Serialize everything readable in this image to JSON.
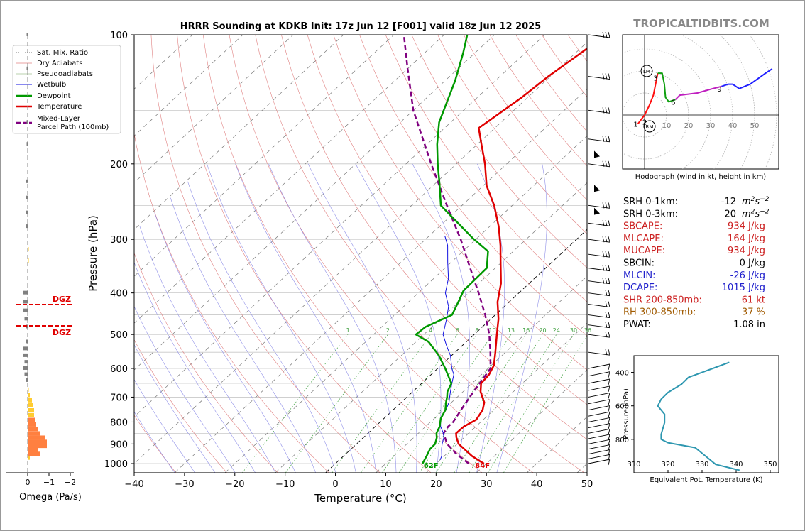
{
  "title": "HRRR Sounding at KDKB Init: 17z Jun 12 [F001] valid 18z Jun 12 2025",
  "site_label": "TROPICALTIDBITS.COM",
  "colors": {
    "temperature": "#e00000",
    "dewpoint": "#009900",
    "wetbulb": "#1010e0",
    "parcel": "#800080",
    "dry_adiabat": "#e08080",
    "moist_adiabat": "#9090e8",
    "mixing_ratio": "#40a040",
    "isotherm_dashed": "#777777",
    "isotherm_zero": "#000000",
    "dgz": "#e00000",
    "theta_e": "#2e97b0",
    "hodo_red": "#ff1010",
    "hodo_green": "#10a010",
    "hodo_purple": "#c020c0",
    "hodo_blue": "#2020ff",
    "omega_bars": "#ff8040",
    "omega_small": "#ffcc30",
    "omega_neg": "#808080",
    "label_red": "#cc2020",
    "label_blue": "#2020cc",
    "label_brown": "#a05a00"
  },
  "skewt": {
    "xlabel": "Temperature (°C)",
    "ylabel": "Pressure (hPa)",
    "xlim": [
      -40,
      50
    ],
    "plim": [
      1050,
      100
    ],
    "x_ticks": [
      "−40",
      "−30",
      "−20",
      "−10",
      "0",
      "10",
      "20",
      "30",
      "40",
      "50"
    ],
    "p_ticks": [
      "100",
      "200",
      "300",
      "400",
      "500",
      "600",
      "700",
      "800",
      "900",
      "1000"
    ],
    "mixing_ratio_labels": [
      "1",
      "2",
      "4",
      "6",
      "8",
      "10",
      "13",
      "16",
      "20",
      "24",
      "30",
      "36"
    ],
    "surface_temp_label": "84F",
    "surface_dewpoint_label": "62F"
  },
  "legend": {
    "items": [
      {
        "label": "Sat. Mix. Ratio"
      },
      {
        "label": "Dry Adiabats"
      },
      {
        "label": "Pseudoadiabats"
      },
      {
        "label": "Wetbulb"
      },
      {
        "label": "Dewpoint"
      },
      {
        "label": "Temperature"
      },
      {
        "label": "Mixed-Layer"
      },
      {
        "label": "Parcel Path (100mb)"
      }
    ]
  },
  "omega": {
    "xlabel": "Omega (Pa/s)",
    "x_ticks": [
      "0",
      "−1",
      "−2"
    ],
    "dgz_label": "DGZ"
  },
  "hodograph": {
    "caption": "Hodograph (wind in kt, height in km)",
    "ring_labels": [
      "10",
      "20",
      "30",
      "40",
      "50"
    ],
    "height_labels": [
      "1",
      "2",
      "3",
      "6",
      "9"
    ],
    "lm_label": "LM",
    "rm_label": "RM"
  },
  "indices": [
    {
      "name": "SRH 0-1km:",
      "value": "-12",
      "unit": "m2s-2",
      "color": "black"
    },
    {
      "name": "SRH 0-3km:",
      "value": "20",
      "unit": "m2s-2",
      "color": "black"
    },
    {
      "name": "SBCAPE:",
      "value": "934 J/kg",
      "color": "red"
    },
    {
      "name": "MLCAPE:",
      "value": "164 J/kg",
      "color": "red"
    },
    {
      "name": "MUCAPE:",
      "value": "934 J/kg",
      "color": "red"
    },
    {
      "name": "SBCIN:",
      "value": "0 J/kg",
      "color": "black"
    },
    {
      "name": "MLCIN:",
      "value": "-26 J/kg",
      "color": "blue"
    },
    {
      "name": "DCAPE:",
      "value": "1015 J/kg",
      "color": "blue"
    },
    {
      "name": "SHR 200-850mb:",
      "value": "61 kt",
      "color": "red"
    },
    {
      "name": "RH 300-850mb:",
      "value": "37 %",
      "color": "brown"
    },
    {
      "name": "PWAT:",
      "value": "1.08 in",
      "color": "black"
    }
  ],
  "theta_e_panel": {
    "xlabel": "Equivalent Pot. Temperature (K)",
    "ylabel": "Pressure (hPa)",
    "x_ticks": [
      "310",
      "320",
      "330",
      "340",
      "350"
    ],
    "y_ticks": [
      "400",
      "600",
      "800"
    ]
  },
  "chart_data": [
    {
      "type": "line",
      "name": "skew-t",
      "series": [
        {
          "name": "Temperature",
          "points": [
            [
              1000,
              29.5
            ],
            [
              990,
              28.5
            ],
            [
              960,
              25.5
            ],
            [
              925,
              22.5
            ],
            [
              900,
              20.3
            ],
            [
              870,
              18.5
            ],
            [
              850,
              17.5
            ],
            [
              820,
              17.6
            ],
            [
              790,
              18.6
            ],
            [
              750,
              17.8
            ],
            [
              720,
              16.5
            ],
            [
              700,
              15.0
            ],
            [
              680,
              13.5
            ],
            [
              650,
              11.8
            ],
            [
              620,
              11.5
            ],
            [
              590,
              10.5
            ],
            [
              550,
              8.0
            ],
            [
              500,
              4.5
            ],
            [
              460,
              1.5
            ],
            [
              420,
              -2.3
            ],
            [
              380,
              -5.6
            ],
            [
              340,
              -10.1
            ],
            [
              310,
              -13.8
            ],
            [
              280,
              -18.2
            ],
            [
              250,
              -23.6
            ],
            [
              225,
              -29.3
            ],
            [
              200,
              -34.3
            ],
            [
              180,
              -39.2
            ],
            [
              165,
              -43.2
            ],
            [
              140,
              -41.2
            ],
            [
              125,
              -40.4
            ],
            [
              110,
              -38.9
            ],
            [
              100,
              -37.9
            ]
          ]
        },
        {
          "name": "Dewpoint",
          "points": [
            [
              1000,
              17.3
            ],
            [
              960,
              16.5
            ],
            [
              925,
              15.7
            ],
            [
              900,
              15.6
            ],
            [
              870,
              14.6
            ],
            [
              850,
              13.6
            ],
            [
              820,
              12.8
            ],
            [
              785,
              11.3
            ],
            [
              750,
              10.4
            ],
            [
              720,
              8.9
            ],
            [
              700,
              8.0
            ],
            [
              680,
              6.9
            ],
            [
              650,
              5.9
            ],
            [
              620,
              3.3
            ],
            [
              600,
              1.5
            ],
            [
              560,
              -2.5
            ],
            [
              520,
              -7.5
            ],
            [
              500,
              -11.6
            ],
            [
              480,
              -11.3
            ],
            [
              450,
              -8.6
            ],
            [
              420,
              -10.1
            ],
            [
              395,
              -11.5
            ],
            [
              350,
              -11.7
            ],
            [
              320,
              -15.0
            ],
            [
              298,
              -20.9
            ],
            [
              250,
              -34.2
            ],
            [
              222,
              -39.2
            ],
            [
              200,
              -43.7
            ],
            [
              180,
              -48.0
            ],
            [
              160,
              -52.3
            ],
            [
              128,
              -58.0
            ],
            [
              110,
              -62.4
            ],
            [
              100,
              -65.4
            ]
          ]
        },
        {
          "name": "Wetbulb",
          "points": [
            [
              980,
              20.0
            ],
            [
              960,
              19.5
            ],
            [
              925,
              18.0
            ],
            [
              900,
              17.0
            ],
            [
              870,
              16.0
            ],
            [
              850,
              15.0
            ],
            [
              820,
              13.0
            ],
            [
              790,
              11.5
            ],
            [
              750,
              10.5
            ],
            [
              720,
              9.5
            ],
            [
              700,
              8.5
            ],
            [
              680,
              7.5
            ],
            [
              650,
              6.0
            ],
            [
              620,
              4.5
            ],
            [
              600,
              2.8
            ],
            [
              560,
              -0.2
            ],
            [
              530,
              -3.2
            ],
            [
              500,
              -6.2
            ],
            [
              460,
              -8.8
            ],
            [
              430,
              -11.1
            ],
            [
              400,
              -14.6
            ],
            [
              370,
              -17.1
            ],
            [
              340,
              -20.6
            ],
            [
              310,
              -24.3
            ],
            [
              295,
              -26.8
            ]
          ]
        },
        {
          "name": "Mixed-Layer Parcel Path",
          "points": [
            [
              1000,
              26.5
            ],
            [
              950,
              22.0
            ],
            [
              900,
              18.0
            ],
            [
              850,
              15.0
            ],
            [
              820,
              14.5
            ],
            [
              800,
              14.5
            ],
            [
              750,
              13.5
            ],
            [
              700,
              12.5
            ],
            [
              650,
              11.5
            ],
            [
              600,
              10.5
            ],
            [
              550,
              7.0
            ],
            [
              500,
              3.0
            ],
            [
              450,
              -2.0
            ],
            [
              400,
              -8.0
            ],
            [
              350,
              -15.0
            ],
            [
              300,
              -23.0
            ],
            [
              250,
              -33.0
            ],
            [
              200,
              -45.0
            ],
            [
              150,
              -60.0
            ],
            [
              120,
              -70.0
            ],
            [
              100,
              -78.0
            ]
          ]
        }
      ]
    },
    {
      "type": "line",
      "name": "hodograph",
      "series": [
        {
          "name": "0-3 km",
          "points": [
            [
              -3,
              -4
            ],
            [
              0,
              0
            ],
            [
              2,
              4
            ],
            [
              4,
              9
            ],
            [
              5,
              14
            ],
            [
              6,
              19
            ]
          ]
        },
        {
          "name": "3-6 km",
          "points": [
            [
              6,
              19
            ],
            [
              8,
              19
            ],
            [
              9,
              14
            ],
            [
              9.5,
              8
            ],
            [
              11,
              6
            ],
            [
              14,
              7
            ]
          ]
        },
        {
          "name": "6-9 km",
          "points": [
            [
              14,
              7
            ],
            [
              16,
              9
            ],
            [
              24,
              10
            ],
            [
              31,
              12
            ],
            [
              35,
              13
            ]
          ]
        },
        {
          "name": "9+ km",
          "points": [
            [
              35,
              13
            ],
            [
              38,
              14
            ],
            [
              40,
              14
            ],
            [
              43,
              12
            ],
            [
              48,
              14
            ],
            [
              55,
              19
            ],
            [
              58,
              21
            ]
          ]
        }
      ]
    },
    {
      "type": "line",
      "name": "theta-e profile",
      "series": [
        {
          "name": "Theta-E",
          "points": [
            [
              985,
              341
            ],
            [
              950,
              334
            ],
            [
              900,
              331
            ],
            [
              850,
              328
            ],
            [
              820,
              320
            ],
            [
              800,
              318
            ],
            [
              770,
              318
            ],
            [
              700,
              319
            ],
            [
              650,
              319
            ],
            [
              600,
              317
            ],
            [
              560,
              318
            ],
            [
              520,
              320
            ],
            [
              470,
              324
            ],
            [
              430,
              326
            ],
            [
              400,
              330
            ],
            [
              370,
              334
            ],
            [
              340,
              338
            ]
          ]
        }
      ]
    }
  ]
}
